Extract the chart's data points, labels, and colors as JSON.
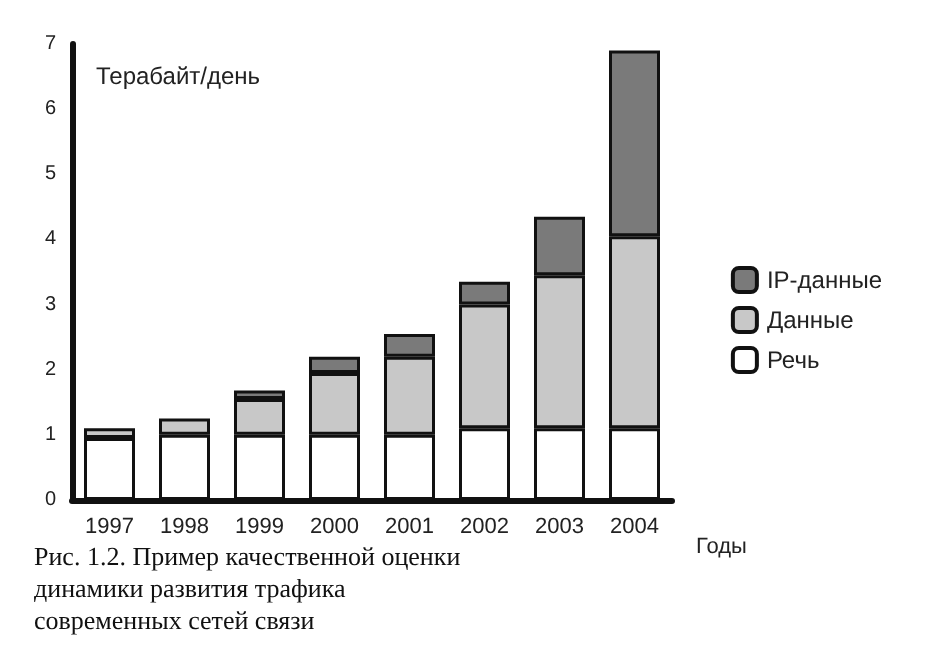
{
  "chart_data": {
    "type": "bar",
    "stacked": true,
    "ylabel": "Терабайт/день",
    "xlabel": "Годы",
    "categories": [
      "1997",
      "1998",
      "1999",
      "2000",
      "2001",
      "2002",
      "2003",
      "2004"
    ],
    "series": [
      {
        "name": "Речь",
        "color": "#ffffff",
        "values": [
          0.95,
          1.0,
          1.0,
          1.0,
          1.0,
          1.1,
          1.1,
          1.1
        ]
      },
      {
        "name": "Данные",
        "color": "#c8c8c8",
        "values": [
          0.15,
          0.25,
          0.55,
          0.95,
          1.2,
          1.9,
          2.35,
          2.95
        ]
      },
      {
        "name": "IP-данные",
        "color": "#7a7a7a",
        "values": [
          null,
          null,
          0.13,
          0.25,
          0.35,
          0.35,
          0.9,
          2.85
        ]
      }
    ],
    "ylim": [
      0,
      7
    ],
    "yticks": [
      0,
      1,
      2,
      3,
      4,
      5,
      6,
      7
    ],
    "grid": false,
    "legend": "right",
    "annotations": [
      "Рис. 1.2. Пример качественной оценки динамики развития трафика современных сетей связи"
    ]
  }
}
